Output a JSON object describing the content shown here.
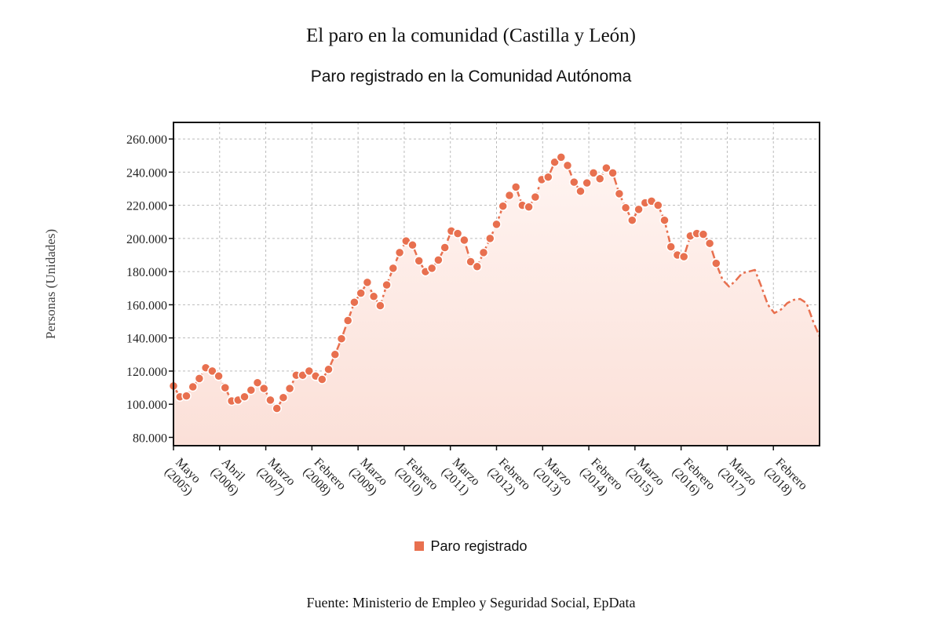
{
  "chart_data": {
    "type": "area",
    "title": "El paro en la comunidad (Castilla y León)",
    "subtitle": "Paro registrado en la Comunidad Autónoma",
    "xlabel": "",
    "ylabel": "Personas (Unidades)",
    "ylim": [
      75000,
      270000
    ],
    "yticks": [
      80000,
      100000,
      120000,
      140000,
      160000,
      180000,
      200000,
      220000,
      240000,
      260000
    ],
    "ytick_labels": [
      "80.000",
      "100.000",
      "120.000",
      "140.000",
      "160.000",
      "180.000",
      "200.000",
      "220.000",
      "240.000",
      "260.000"
    ],
    "grid": true,
    "legend_position": "bottom-center",
    "xtick_labels": [
      [
        "Mayo",
        "(2005)"
      ],
      [
        "Abril",
        "(2006)"
      ],
      [
        "Marzo",
        "(2007)"
      ],
      [
        "Febrero",
        "(2008)"
      ],
      [
        "Marzo",
        "(2009)"
      ],
      [
        "Febrero",
        "(2010)"
      ],
      [
        "Marzo",
        "(2011)"
      ],
      [
        "Febrero",
        "(2012)"
      ],
      [
        "Marzo",
        "(2013)"
      ],
      [
        "Febrero",
        "(2014)"
      ],
      [
        "Marzo",
        "(2015)"
      ],
      [
        "Febrero",
        "(2016)"
      ],
      [
        "Marzo",
        "(2017)"
      ],
      [
        "Febrero",
        "(2018)"
      ]
    ],
    "source": "Fuente: Ministerio de Empleo y Seguridad Social, EpData",
    "colors": {
      "line": "#E8704F",
      "fill_top": "#FBE4DD",
      "fill_bottom": "#FCEFEA",
      "frame": "#111111",
      "grid": "#BBBBBB"
    },
    "series": [
      {
        "name": "Paro registrado",
        "values": [
          111000,
          104500,
          105000,
          110500,
          115500,
          122000,
          120000,
          117000,
          110000,
          102000,
          102500,
          104500,
          108500,
          113000,
          109500,
          102500,
          97500,
          104000,
          109500,
          117500,
          117500,
          120000,
          117000,
          115000,
          121000,
          130000,
          139500,
          150500,
          161500,
          167000,
          173500,
          165000,
          159500,
          172000,
          182000,
          191500,
          198500,
          196000,
          186500,
          180000,
          182000,
          187000,
          194500,
          204500,
          203000,
          199000,
          186000,
          183000,
          191500,
          200000,
          208500,
          219500,
          226000,
          231000,
          220000,
          219000,
          225000,
          235500,
          237000,
          246000,
          249000,
          244000,
          234000,
          228500,
          233500,
          239500,
          236000,
          242500,
          239500,
          227000,
          218500,
          211000,
          217500,
          221500,
          222500,
          220000,
          211000,
          195000,
          190000,
          189000,
          201500,
          203000,
          202500,
          197000,
          185000,
          175000,
          171000,
          174500,
          179000,
          180000,
          181000,
          171000,
          160000,
          155000,
          157000,
          161000,
          163000,
          163500,
          161000,
          150000,
          141000
        ],
        "markers_through_index": 84
      }
    ]
  }
}
